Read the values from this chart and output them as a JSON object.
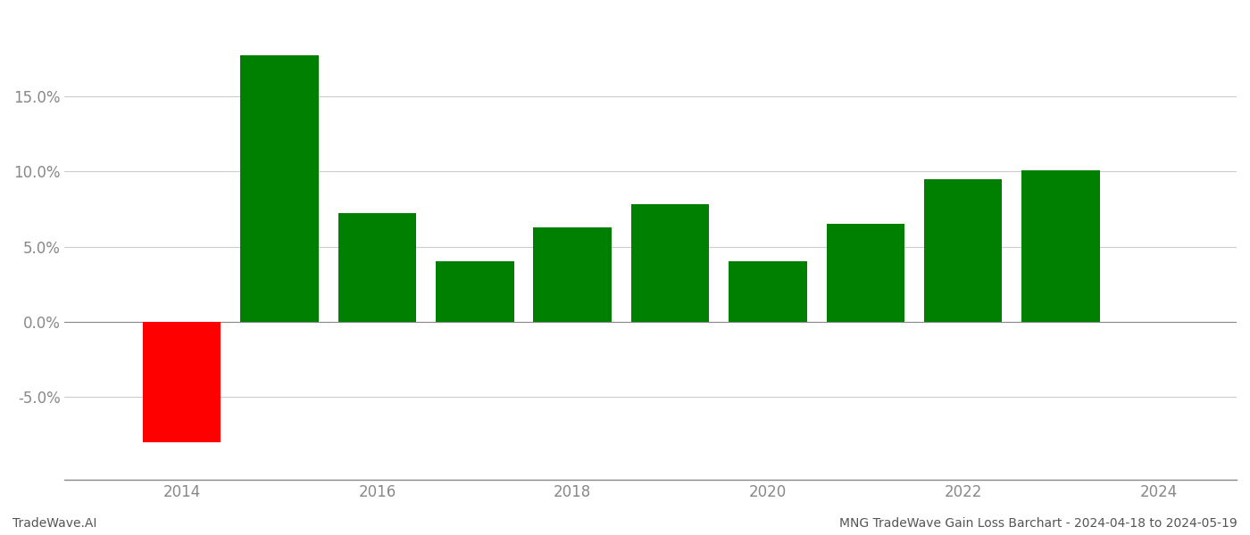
{
  "years": [
    2014,
    2015,
    2016,
    2017,
    2018,
    2019,
    2020,
    2021,
    2022,
    2023
  ],
  "values": [
    -0.08,
    0.177,
    0.072,
    0.04,
    0.063,
    0.078,
    0.04,
    0.065,
    0.095,
    0.101
  ],
  "colors": [
    "#ff0000",
    "#008000",
    "#008000",
    "#008000",
    "#008000",
    "#008000",
    "#008000",
    "#008000",
    "#008000",
    "#008000"
  ],
  "ylim": [
    -0.105,
    0.205
  ],
  "yticks": [
    -0.05,
    0.0,
    0.05,
    0.1,
    0.15
  ],
  "xticks_positions": [
    2014,
    2016,
    2018,
    2020,
    2022,
    2024
  ],
  "xticks_labels": [
    "2014",
    "2016",
    "2018",
    "2020",
    "2022",
    "2024"
  ],
  "xlim": [
    2012.8,
    2024.8
  ],
  "footer_left": "TradeWave.AI",
  "footer_right": "MNG TradeWave Gain Loss Barchart - 2024-04-18 to 2024-05-19",
  "background_color": "#ffffff",
  "grid_color": "#cccccc",
  "axis_color": "#888888",
  "tick_label_color": "#888888",
  "footer_color_left": "#555555",
  "footer_color_right": "#555555",
  "bar_width": 0.8
}
